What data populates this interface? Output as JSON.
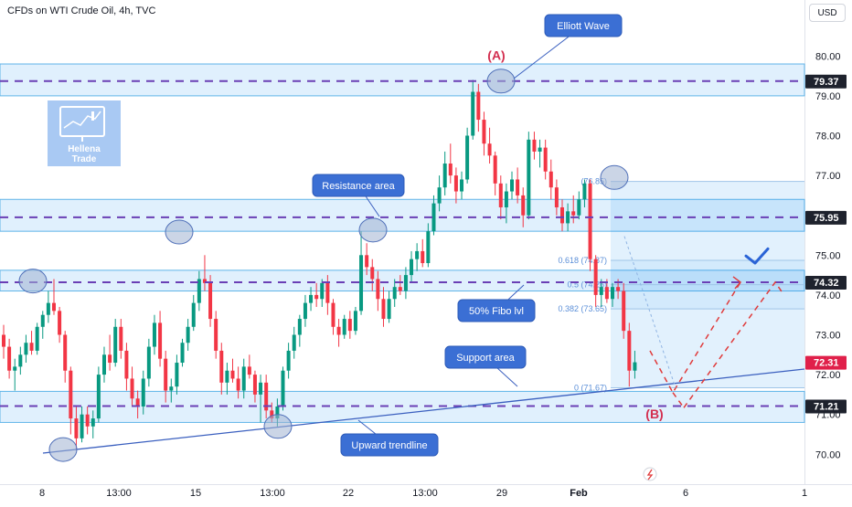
{
  "header": {
    "title": "CFDs on WTI Crude Oil, 4h, TVC",
    "currency": "USD"
  },
  "logo": {
    "line1": "Hellena",
    "line2": "Trade"
  },
  "chart_data": {
    "type": "candlestick",
    "y_axis": {
      "ticks": [
        70.0,
        71.0,
        72.0,
        73.0,
        74.0,
        75.0,
        76.0,
        77.0,
        78.0,
        79.0,
        80.0
      ],
      "range": [
        69.2,
        81.2
      ]
    },
    "x_axis": {
      "ticks": [
        "8",
        "13:00",
        "15",
        "13:00",
        "22",
        "13:00",
        "29",
        "Feb",
        "6",
        "1"
      ]
    },
    "price_labels": [
      {
        "value": "79.37",
        "color": "#1e222d"
      },
      {
        "value": "75.95",
        "color": "#1e222d"
      },
      {
        "value": "74.32",
        "color": "#1e222d"
      },
      {
        "value": "72.31",
        "color": "#e0204a"
      },
      {
        "value": "71.21",
        "color": "#1e222d"
      }
    ],
    "zones": [
      {
        "from": 79.0,
        "to": 79.8
      },
      {
        "from": 75.6,
        "to": 76.4
      },
      {
        "from": 74.1,
        "to": 74.62
      },
      {
        "from": 70.8,
        "to": 71.58
      }
    ],
    "dashed_levels": [
      79.37,
      75.95,
      74.32,
      71.21
    ],
    "fibonacci": [
      {
        "label": "(76.85)",
        "value": 76.85
      },
      {
        "label": "0.618 (74.87)",
        "value": 74.87
      },
      {
        "label": "0.5 (74.26)",
        "value": 74.26
      },
      {
        "label": "0.382 (73.65)",
        "value": 73.65
      },
      {
        "label": "0 (71.67)",
        "value": 71.67
      }
    ],
    "annotations": {
      "elliott": "Elliott Wave",
      "resistance": "Resistance area",
      "fibo": "50% Fibo lvl",
      "support": "Support area",
      "trendline": "Upward trendline",
      "wave_a": "(A)",
      "wave_b": "(B)"
    },
    "candles": [
      [
        73.0,
        73.25,
        72.4,
        72.7
      ],
      [
        72.7,
        72.9,
        71.9,
        72.1
      ],
      [
        72.1,
        72.4,
        71.6,
        72.2
      ],
      [
        72.2,
        72.7,
        72.0,
        72.5
      ],
      [
        72.5,
        73.0,
        72.3,
        72.8
      ],
      [
        72.8,
        73.1,
        72.5,
        72.6
      ],
      [
        72.6,
        73.3,
        72.5,
        73.2
      ],
      [
        73.2,
        73.6,
        72.9,
        73.5
      ],
      [
        73.5,
        74.1,
        73.3,
        73.8
      ],
      [
        73.8,
        74.4,
        73.5,
        73.6
      ],
      [
        73.6,
        73.7,
        72.8,
        73.0
      ],
      [
        73.0,
        73.1,
        71.8,
        72.1
      ],
      [
        72.1,
        72.2,
        70.5,
        70.9
      ],
      [
        70.9,
        71.2,
        70.1,
        70.4
      ],
      [
        70.4,
        71.2,
        70.3,
        71.0
      ],
      [
        71.0,
        71.2,
        70.5,
        70.7
      ],
      [
        70.7,
        71.1,
        70.4,
        70.9
      ],
      [
        70.9,
        72.2,
        70.8,
        72.0
      ],
      [
        72.0,
        72.7,
        71.8,
        72.5
      ],
      [
        72.5,
        73.0,
        72.1,
        72.3
      ],
      [
        72.3,
        73.4,
        72.2,
        73.2
      ],
      [
        73.2,
        73.4,
        72.4,
        72.6
      ],
      [
        72.6,
        72.8,
        71.6,
        71.9
      ],
      [
        71.9,
        72.2,
        71.2,
        71.4
      ],
      [
        71.4,
        71.6,
        70.9,
        71.2
      ],
      [
        71.2,
        72.1,
        71.0,
        71.9
      ],
      [
        71.9,
        72.9,
        71.7,
        72.7
      ],
      [
        72.7,
        73.5,
        72.5,
        73.3
      ],
      [
        73.3,
        73.6,
        72.2,
        72.4
      ],
      [
        72.4,
        72.6,
        71.3,
        71.6
      ],
      [
        71.6,
        71.9,
        71.3,
        71.7
      ],
      [
        71.7,
        72.5,
        71.5,
        72.3
      ],
      [
        72.3,
        72.9,
        72.2,
        72.8
      ],
      [
        72.8,
        73.4,
        72.6,
        73.2
      ],
      [
        73.2,
        74.0,
        73.1,
        73.8
      ],
      [
        73.8,
        74.6,
        73.6,
        74.4
      ],
      [
        74.4,
        75.0,
        74.1,
        74.3
      ],
      [
        74.3,
        74.5,
        73.2,
        73.4
      ],
      [
        73.4,
        73.6,
        72.4,
        72.6
      ],
      [
        72.6,
        72.8,
        71.5,
        71.8
      ],
      [
        71.8,
        72.3,
        71.5,
        72.1
      ],
      [
        72.1,
        72.4,
        71.8,
        71.9
      ],
      [
        71.9,
        72.2,
        71.4,
        71.6
      ],
      [
        71.6,
        72.4,
        71.4,
        72.2
      ],
      [
        72.2,
        72.5,
        71.9,
        72.0
      ],
      [
        72.0,
        72.1,
        71.3,
        71.5
      ],
      [
        71.5,
        72.0,
        70.8,
        71.8
      ],
      [
        71.8,
        72.0,
        70.9,
        71.1
      ],
      [
        71.1,
        71.3,
        70.8,
        70.9
      ],
      [
        70.9,
        71.4,
        70.7,
        71.2
      ],
      [
        71.2,
        72.2,
        71.1,
        72.1
      ],
      [
        72.1,
        72.8,
        71.9,
        72.6
      ],
      [
        72.6,
        73.2,
        72.4,
        73.0
      ],
      [
        73.0,
        73.5,
        72.7,
        73.4
      ],
      [
        73.4,
        74.0,
        73.2,
        73.8
      ],
      [
        73.8,
        74.2,
        73.6,
        74.0
      ],
      [
        74.0,
        74.3,
        73.7,
        73.9
      ],
      [
        73.9,
        74.4,
        73.7,
        74.3
      ],
      [
        74.3,
        74.5,
        73.5,
        73.8
      ],
      [
        73.8,
        73.9,
        73.0,
        73.2
      ],
      [
        73.2,
        73.4,
        72.7,
        73.0
      ],
      [
        73.0,
        73.5,
        72.9,
        73.4
      ],
      [
        73.4,
        73.6,
        72.9,
        73.1
      ],
      [
        73.1,
        73.7,
        73.0,
        73.6
      ],
      [
        73.6,
        75.6,
        73.5,
        75.0
      ],
      [
        75.0,
        75.3,
        74.5,
        74.7
      ],
      [
        74.7,
        74.9,
        74.1,
        74.4
      ],
      [
        74.4,
        74.6,
        73.6,
        73.9
      ],
      [
        73.9,
        74.2,
        73.2,
        73.4
      ],
      [
        73.4,
        74.1,
        73.3,
        73.9
      ],
      [
        73.9,
        74.4,
        73.7,
        74.2
      ],
      [
        74.2,
        74.5,
        74.0,
        74.1
      ],
      [
        74.1,
        74.7,
        73.9,
        74.5
      ],
      [
        74.5,
        75.1,
        74.3,
        74.9
      ],
      [
        74.9,
        75.3,
        74.6,
        75.1
      ],
      [
        75.1,
        75.4,
        74.7,
        74.8
      ],
      [
        74.8,
        75.8,
        74.7,
        75.6
      ],
      [
        75.6,
        76.5,
        75.5,
        76.3
      ],
      [
        76.3,
        77.0,
        76.1,
        76.7
      ],
      [
        76.7,
        77.6,
        76.5,
        77.3
      ],
      [
        77.3,
        77.8,
        76.8,
        77.0
      ],
      [
        77.0,
        77.2,
        76.3,
        76.6
      ],
      [
        76.6,
        77.1,
        76.4,
        76.9
      ],
      [
        76.9,
        78.2,
        76.8,
        78.0
      ],
      [
        78.0,
        79.4,
        77.9,
        79.1
      ],
      [
        79.1,
        79.3,
        78.1,
        78.4
      ],
      [
        78.4,
        78.6,
        77.5,
        77.8
      ],
      [
        77.8,
        78.2,
        77.3,
        77.5
      ],
      [
        77.5,
        77.6,
        76.5,
        76.8
      ],
      [
        76.8,
        77.0,
        75.9,
        76.2
      ],
      [
        76.2,
        76.8,
        75.8,
        76.6
      ],
      [
        76.6,
        77.1,
        76.4,
        76.9
      ],
      [
        76.9,
        77.2,
        76.3,
        76.5
      ],
      [
        76.5,
        76.7,
        75.7,
        76.0
      ],
      [
        76.0,
        78.1,
        75.9,
        77.9
      ],
      [
        77.9,
        78.1,
        77.4,
        77.6
      ],
      [
        77.6,
        77.9,
        77.2,
        77.7
      ],
      [
        77.7,
        77.9,
        76.9,
        77.1
      ],
      [
        77.1,
        77.4,
        76.4,
        76.7
      ],
      [
        76.7,
        76.9,
        76.0,
        76.2
      ],
      [
        76.2,
        76.4,
        75.6,
        75.8
      ],
      [
        75.8,
        76.3,
        75.6,
        76.1
      ],
      [
        76.1,
        76.5,
        75.8,
        76.0
      ],
      [
        76.0,
        76.6,
        75.9,
        76.4
      ],
      [
        76.4,
        76.9,
        76.2,
        76.8
      ],
      [
        76.8,
        76.9,
        74.6,
        74.9
      ],
      [
        74.9,
        75.0,
        73.7,
        74.0
      ],
      [
        74.0,
        74.4,
        73.7,
        74.2
      ],
      [
        74.2,
        74.4,
        73.8,
        73.9
      ],
      [
        73.9,
        74.3,
        73.7,
        74.2
      ],
      [
        74.2,
        74.4,
        73.9,
        74.1
      ],
      [
        74.1,
        74.3,
        72.9,
        73.1
      ],
      [
        73.1,
        73.3,
        71.7,
        72.1
      ],
      [
        72.1,
        72.6,
        71.9,
        72.31
      ]
    ]
  }
}
